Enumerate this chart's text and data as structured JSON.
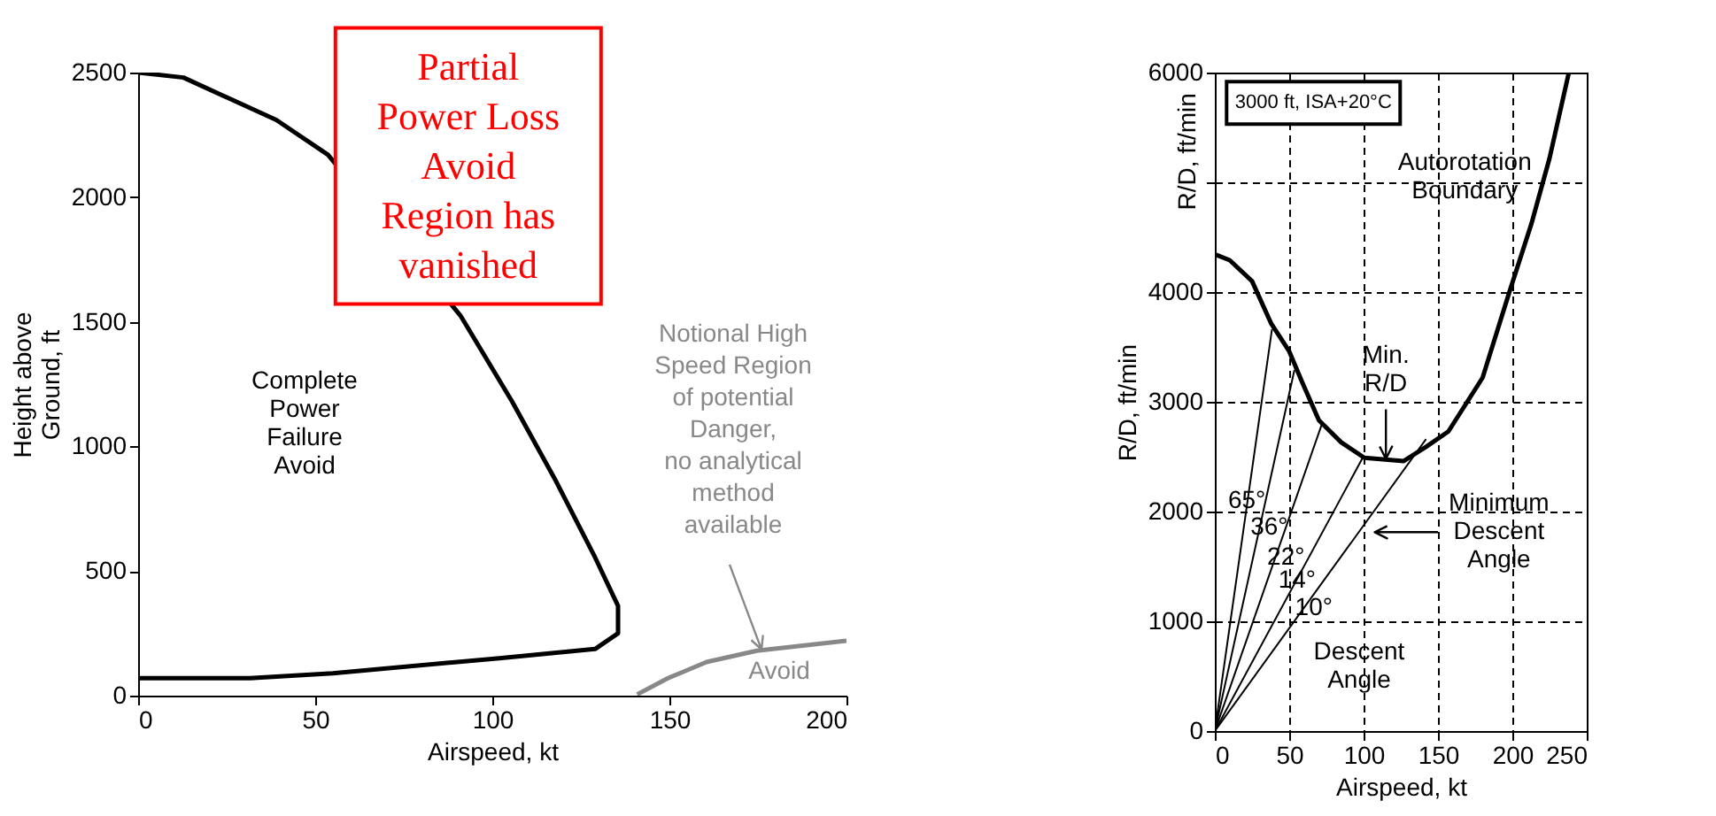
{
  "chart_data": [
    {
      "type": "line",
      "xlabel": "Airspeed, kt",
      "ylabel": "Height above\nGround, ft",
      "xlim": [
        0,
        200
      ],
      "ylim": [
        0,
        2500
      ],
      "xticks": [
        0,
        50,
        100,
        150,
        200
      ],
      "yticks": [
        0,
        500,
        1000,
        1500,
        2000,
        2500
      ],
      "grid": false,
      "series": [
        {
          "color": "#000000",
          "x": [
            0,
            12.8,
            39,
            53.6,
            91,
            105.6,
            118,
            129,
            135.5,
            135.5,
            129,
            102,
            55,
            31.6,
            0
          ],
          "values": [
            2500,
            2480,
            2310,
            2170,
            1525,
            1180,
            860,
            555,
            360,
            250,
            187,
            150,
            90,
            70,
            70
          ]
        },
        {
          "color": "#888888",
          "x": [
            140.9,
            149.6,
            160.5,
            174.7,
            200
          ],
          "values": [
            5,
            70,
            135,
            180,
            220
          ]
        }
      ],
      "annotations": [
        "Complete\nPower\nFailure\nAvoid",
        "Avoid",
        "Partial\nPower Loss\nAvoid\nRegion has\nvanished",
        {
          "text": "Notional High\nSpeed Region\nof potential\nDanger,\nno analytical\nmethod\navailable",
          "x": 176,
          "y": 185
        }
      ]
    },
    {
      "type": "line",
      "xlabel": "Airspeed, kt",
      "ylabel": "R/D, ft/min",
      "xlim": [
        0,
        250
      ],
      "ylim": [
        0,
        6000
      ],
      "xticks": [
        0,
        50,
        100,
        150,
        200,
        250
      ],
      "yticks": [
        0,
        1000,
        2000,
        3000,
        4000,
        {
          "value": 5000,
          "label": null
        },
        6000
      ],
      "grid": true,
      "series": [
        {
          "color": "#000000",
          "x": [
            0.8,
            10,
            25,
            38,
            50,
            59,
            70,
            85,
            100.5,
            127,
            142,
            157,
            180,
            198,
            213,
            225,
            238
          ],
          "values": [
            4340,
            4290,
            4100,
            3710,
            3460,
            3170,
            2830,
            2630,
            2490,
            2460,
            2590,
            2730,
            3220,
            4000,
            4630,
            5220,
            6000
          ]
        },
        {
          "color": "#000000",
          "x": [
            0,
            38.4
          ],
          "values": [
            0,
            3660
          ]
        },
        {
          "color": "#000000",
          "x": [
            0,
            53.5
          ],
          "values": [
            0,
            3290
          ]
        },
        {
          "color": "#000000",
          "x": [
            0,
            72.3
          ],
          "values": [
            0,
            2810
          ]
        },
        {
          "color": "#000000",
          "x": [
            0,
            99.8
          ],
          "values": [
            0,
            2500
          ]
        },
        {
          "color": "#000000",
          "x": [
            0,
            142
          ],
          "values": [
            0,
            2660
          ]
        }
      ],
      "annotations": [
        "65°",
        "36°",
        "22°",
        "14°",
        "10°",
        "3000 ft, ISA+20°C",
        "Autorotation\nBoundary",
        {
          "text": "Min.\nR/D",
          "x": 115,
          "y": 2480
        },
        "Minimum\nDescent\nAngle",
        "Descent\nAngle",
        "R/D, ft/min"
      ]
    }
  ]
}
